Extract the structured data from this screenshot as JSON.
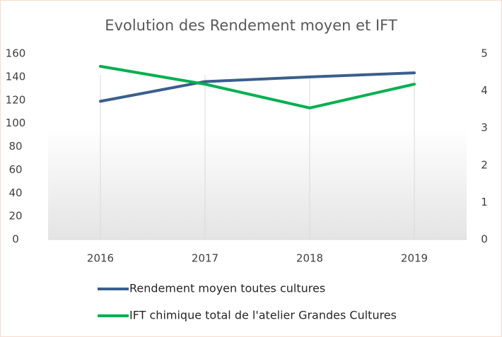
{
  "chart_data": {
    "type": "line",
    "title": "Evolution des Rendement moyen et IFT",
    "categories": [
      "2016",
      "2017",
      "2018",
      "2019"
    ],
    "series": [
      {
        "name": "Rendement moyen toutes cultures",
        "color": "#3a5f8c",
        "values": [
          119,
          136,
          140,
          143.5
        ]
      },
      {
        "name": "IFT chimique total de l'atelier Grandes Cultures",
        "color": "#00b050",
        "values": [
          4.66,
          4.18,
          3.54,
          4.18
        ],
        "axis": "y2"
      }
    ],
    "ylim": [
      0,
      160
    ],
    "yticks": [
      0,
      20,
      40,
      60,
      80,
      100,
      120,
      140,
      160
    ],
    "y2lim": [
      0,
      5
    ],
    "y2ticks": [
      0,
      1,
      2,
      3,
      4,
      5
    ]
  }
}
